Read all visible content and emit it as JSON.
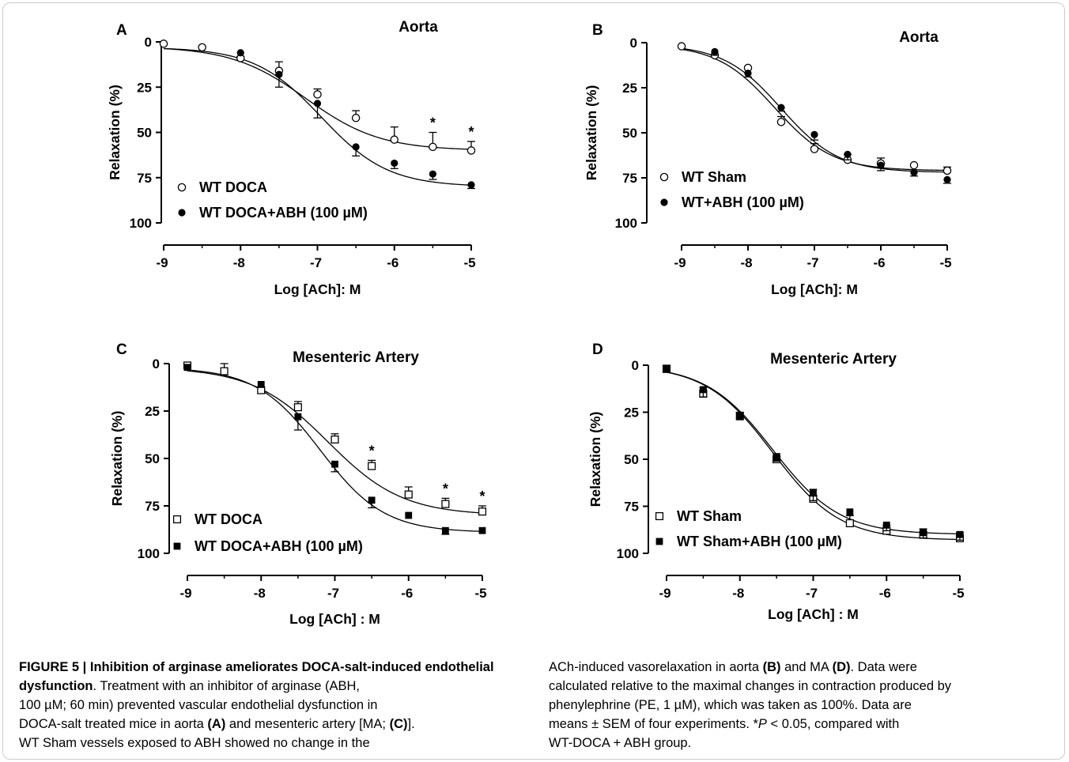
{
  "chart_data": [
    {
      "id": "panel-a",
      "type": "scatter",
      "panel_letter": "A",
      "title": "Aorta",
      "xlabel": "Log [ACh]: M",
      "ylabel": "Relaxation (%)",
      "xlim": [
        -9,
        -5
      ],
      "ylim": [
        0,
        100
      ],
      "y_inverted": true,
      "x_ticks": [
        -9,
        -8,
        -7,
        -6,
        -5
      ],
      "x_tick_labels": [
        "-9",
        "-8",
        "-7",
        "-6",
        "-5"
      ],
      "y_ticks": [
        0,
        25,
        50,
        75,
        100
      ],
      "y_tick_labels": [
        "0",
        "25",
        "50",
        "75",
        "100"
      ],
      "legend_position": "bottom-left",
      "series": [
        {
          "name": "WT DOCA",
          "marker": "open-circle",
          "x": [
            -9,
            -8.5,
            -8,
            -7.5,
            -7,
            -6.5,
            -6,
            -5.5,
            -5
          ],
          "y": [
            1,
            3,
            9,
            16,
            29,
            42,
            54,
            58,
            60
          ],
          "err": [
            0,
            0,
            1,
            5,
            3,
            4,
            7,
            8,
            5
          ],
          "fit": {
            "bottom": 2.5,
            "top": 60,
            "logEC50": -7.15,
            "hill": 0.9
          }
        },
        {
          "name": "WT DOCA+ABH (100 µM)",
          "marker": "filled-circle",
          "x": [
            -8,
            -7.5,
            -7,
            -6.5,
            -6,
            -5.5,
            -5
          ],
          "y": [
            6,
            18,
            34,
            58,
            67,
            73,
            79
          ],
          "err": [
            0,
            7,
            8,
            5,
            3,
            3,
            2
          ],
          "fit": {
            "bottom": 3,
            "top": 80,
            "logEC50": -6.95,
            "hill": 1.0
          }
        }
      ],
      "annotations": [
        {
          "text": "*",
          "x": -5.5
        },
        {
          "text": "*",
          "x": -5
        }
      ]
    },
    {
      "id": "panel-b",
      "type": "scatter",
      "panel_letter": "B",
      "title": "Aorta",
      "xlabel": "Log [ACh]: M",
      "ylabel": "Relaxation (%)",
      "xlim": [
        -9,
        -5
      ],
      "ylim": [
        0,
        100
      ],
      "y_inverted": true,
      "x_ticks": [
        -9,
        -8,
        -7,
        -6,
        -5
      ],
      "x_tick_labels": [
        "-9",
        "-8",
        "-7",
        "-6",
        "-5"
      ],
      "y_ticks": [
        0,
        25,
        50,
        75,
        100
      ],
      "y_tick_labels": [
        "0",
        "25",
        "50",
        "75",
        "100"
      ],
      "legend_position": "bottom-left",
      "series": [
        {
          "name": "WT Sham",
          "marker": "open-circle",
          "x": [
            -9,
            -8.5,
            -8,
            -7.5,
            -7,
            -6.5,
            -6,
            -5.5,
            -5
          ],
          "y": [
            2,
            7,
            14,
            44,
            59,
            65,
            67,
            68,
            71
          ],
          "err": [
            0,
            0,
            0,
            3,
            3,
            3,
            3,
            0,
            2
          ],
          "fit": {
            "bottom": 1,
            "top": 71,
            "logEC50": -7.6,
            "hill": 1.0
          }
        },
        {
          "name": "WT+ABH (100 µM)",
          "marker": "filled-circle",
          "x": [
            -8.5,
            -8,
            -7.5,
            -7,
            -6.5,
            -6,
            -5.5,
            -5
          ],
          "y": [
            5,
            17,
            36,
            51,
            62,
            68,
            72,
            76
          ],
          "err": [
            2,
            2,
            2,
            3,
            3,
            3,
            2,
            2
          ],
          "fit": {
            "bottom": 1,
            "top": 72,
            "logEC50": -7.5,
            "hill": 1.0
          }
        }
      ],
      "annotations": []
    },
    {
      "id": "panel-c",
      "type": "scatter",
      "panel_letter": "C",
      "title": "Mesenteric Artery",
      "xlabel": "Log [ACh] : M",
      "ylabel": "Relaxation (%)",
      "xlim": [
        -9,
        -5
      ],
      "ylim": [
        0,
        100
      ],
      "y_inverted": true,
      "x_ticks": [
        -9,
        -8,
        -7,
        -6,
        -5
      ],
      "x_tick_labels": [
        "-9",
        "-8",
        "-7",
        "-6",
        "-5"
      ],
      "y_ticks": [
        0,
        25,
        50,
        75,
        100
      ],
      "y_tick_labels": [
        "0",
        "25",
        "50",
        "75",
        "100"
      ],
      "legend_position": "bottom-left",
      "series": [
        {
          "name": "WT DOCA",
          "marker": "open-square",
          "x": [
            -9,
            -8.5,
            -8,
            -7.5,
            -7,
            -6.5,
            -6,
            -5.5,
            -5
          ],
          "y": [
            1,
            4,
            14,
            23,
            40,
            54,
            69,
            74,
            78
          ],
          "err": [
            0,
            4,
            0,
            3,
            3,
            3,
            4,
            3,
            3
          ],
          "fit": {
            "bottom": 2,
            "top": 80,
            "logEC50": -7.1,
            "hill": 0.85
          }
        },
        {
          "name": "WT DOCA+ABH (100 µM)",
          "marker": "filled-square",
          "x": [
            -9,
            -8,
            -7.5,
            -7,
            -6.5,
            -6,
            -5.5,
            -5
          ],
          "y": [
            2,
            11,
            28,
            53,
            72,
            80,
            88,
            88
          ],
          "err": [
            0,
            0,
            7,
            4,
            4,
            0,
            2,
            0
          ],
          "fit": {
            "bottom": 2,
            "top": 89,
            "logEC50": -7.2,
            "hill": 1.0
          }
        }
      ],
      "annotations": [
        {
          "text": "*",
          "x": -6.5
        },
        {
          "text": "*",
          "x": -5.5
        },
        {
          "text": "*",
          "x": -5
        }
      ]
    },
    {
      "id": "panel-d",
      "type": "scatter",
      "panel_letter": "D",
      "title": "Mesenteric Artery",
      "xlabel": "Log [ACh] : M",
      "ylabel": "Relaxation (%)",
      "xlim": [
        -9,
        -5
      ],
      "ylim": [
        0,
        100
      ],
      "y_inverted": true,
      "x_ticks": [
        -9,
        -8,
        -7,
        -6,
        -5
      ],
      "x_tick_labels": [
        "-9",
        "-8",
        "-7",
        "-6",
        "-5"
      ],
      "y_ticks": [
        0,
        25,
        50,
        75,
        100
      ],
      "y_tick_labels": [
        "0",
        "25",
        "50",
        "75",
        "100"
      ],
      "legend_position": "bottom-left",
      "series": [
        {
          "name": "WT Sham",
          "marker": "open-square",
          "x": [
            -9,
            -8.5,
            -8,
            -7.5,
            -7,
            -6.5,
            -6,
            -5.5,
            -5
          ],
          "y": [
            2,
            15,
            27,
            50,
            71,
            84,
            88,
            90,
            92
          ],
          "err": [
            2,
            3,
            2,
            3,
            5,
            4,
            3,
            3,
            3
          ],
          "fit": {
            "bottom": 0,
            "top": 93,
            "logEC50": -7.55,
            "hill": 0.95
          }
        },
        {
          "name": "WT Sham+ABH (100 µM)",
          "marker": "filled-square",
          "x": [
            -9,
            -8.5,
            -8,
            -7.5,
            -7,
            -6.5,
            -6,
            -5.5,
            -5
          ],
          "y": [
            2,
            13,
            27,
            49,
            68,
            78,
            85,
            89,
            90
          ],
          "err": [
            0,
            4,
            2,
            2,
            4,
            0,
            3,
            3,
            3
          ],
          "fit": {
            "bottom": 0,
            "top": 90,
            "logEC50": -7.55,
            "hill": 0.95
          }
        }
      ],
      "annotations": []
    }
  ],
  "caption": {
    "figure_label": "FIGURE 5 | Inhibition of arginase ameliorates DOCA-salt-induced endothelial dysfunction",
    "col1_line1_rest": ". Treatment with an inhibitor of arginase (ABH,",
    "col1_line2": "100 µM; 60 min) prevented vascular endothelial dysfunction in",
    "col1_line3_a": "DOCA-salt treated mice in aorta ",
    "col1_line3_b": "(A)",
    "col1_line3_c": " and mesenteric artery [MA; ",
    "col1_line3_d": "(C)",
    "col1_line3_e": "].",
    "col1_line4": "WT Sham vessels exposed to ABH showed no change in the",
    "col2_line1_a": "ACh-induced vasorelaxation in aorta ",
    "col2_line1_b": "(B)",
    "col2_line1_c": " and MA ",
    "col2_line1_d": "(D)",
    "col2_line1_e": ". Data were",
    "col2_line2": "calculated relative to the maximal changes in contraction produced by",
    "col2_line3": "phenylephrine (PE, 1 µM), which was taken as 100%. Data are",
    "col2_line4_a": "means ± SEM of four experiments. *",
    "col2_line4_b": "P",
    "col2_line4_c": " < 0.05, compared with",
    "col2_line5": "WT-DOCA + ABH group."
  }
}
